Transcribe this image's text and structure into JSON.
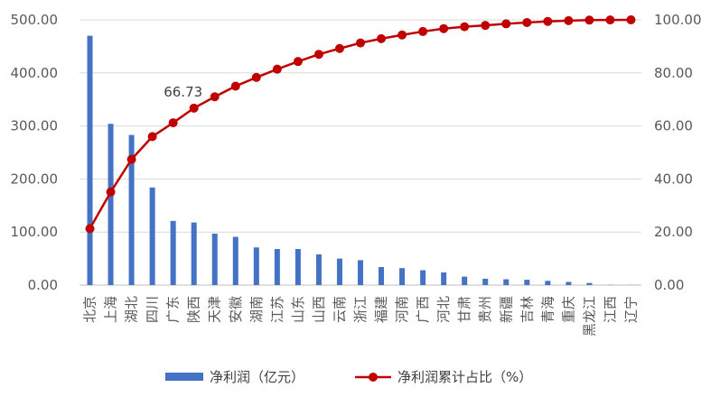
{
  "chart_data": {
    "type": "bar",
    "categories": [
      "北京",
      "上海",
      "湖北",
      "四川",
      "广东",
      "陕西",
      "天津",
      "安徽",
      "湖南",
      "江苏",
      "山东",
      "山西",
      "云南",
      "浙江",
      "福建",
      "河南",
      "广西",
      "河北",
      "甘肃",
      "贵州",
      "新疆",
      "吉林",
      "青海",
      "重庆",
      "黑龙江",
      "江西",
      "辽宁"
    ],
    "series": [
      {
        "name": "净利润（亿元）",
        "type": "bar",
        "axis": "left",
        "color": "#4472C4",
        "values": [
          470,
          304,
          283,
          184,
          121,
          118,
          97,
          91,
          71,
          68,
          68,
          58,
          50,
          47,
          34,
          32,
          28,
          24,
          16,
          12,
          11,
          10,
          8,
          6,
          4,
          0.5,
          0.3
        ]
      },
      {
        "name": "净利润累计占比（%）",
        "type": "line",
        "axis": "right",
        "color": "#C00000",
        "values": [
          21.3,
          35.1,
          47.4,
          56.0,
          61.2,
          66.73,
          71.0,
          75.0,
          78.3,
          81.4,
          84.3,
          87.0,
          89.2,
          91.3,
          92.9,
          94.3,
          95.6,
          96.7,
          97.4,
          97.9,
          98.5,
          99.0,
          99.4,
          99.7,
          99.9,
          99.95,
          100.0
        ]
      }
    ],
    "left_axis": {
      "min": 0,
      "max": 500,
      "ticks": [
        "0.00",
        "100.00",
        "200.00",
        "300.00",
        "400.00",
        "500.00"
      ]
    },
    "right_axis": {
      "min": 0,
      "max": 100,
      "ticks": [
        "0.00",
        "20.00",
        "40.00",
        "60.00",
        "80.00",
        "100.00"
      ]
    },
    "annotations": [
      {
        "category": "陕西",
        "series": "净利润累计占比（%）",
        "text": "66.73"
      }
    ],
    "grid": true,
    "legend_position": "bottom"
  }
}
